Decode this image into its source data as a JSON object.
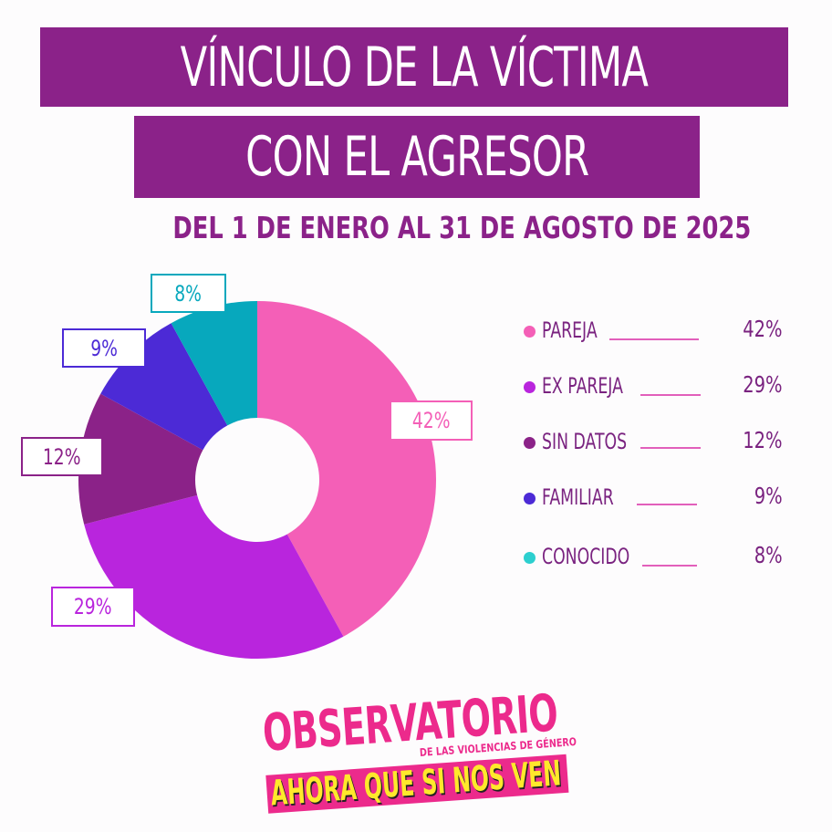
{
  "header": {
    "title_line1": "VÍNCULO DE LA VÍCTIMA",
    "title_line2": "CON EL AGRESOR",
    "subtitle": "DEL 1 DE ENERO AL 31 DE AGOSTO DE 2025"
  },
  "colors": {
    "banner": "#8b2289",
    "pareja": "#f45fb7",
    "ex_pareja": "#b925dd",
    "sin_datos": "#8b2288",
    "familiar": "#4c2ad6",
    "conocido": "#07a8bd"
  },
  "slice_labels": [
    {
      "text": "42%",
      "color": "#f45fb7"
    },
    {
      "text": "29%",
      "color": "#b925dd"
    },
    {
      "text": "12%",
      "color": "#8b2288"
    },
    {
      "text": "9%",
      "color": "#4c2ad6"
    },
    {
      "text": "8%",
      "color": "#07a8bd"
    }
  ],
  "legend": [
    {
      "name": "PAREJA",
      "value": "42%",
      "color": "#f45fb7"
    },
    {
      "name": "EX PAREJA",
      "value": "29%",
      "color": "#b925dd"
    },
    {
      "name": "SIN DATOS",
      "value": "12%",
      "color": "#8b2288"
    },
    {
      "name": "FAMILIAR",
      "value": "9%",
      "color": "#4c2ad6"
    },
    {
      "name": "CONOCIDO",
      "value": "8%",
      "color": "#2ccfcf"
    }
  ],
  "logo": {
    "title": "OBSERVATORIO",
    "subtitle": "DE LAS VIOLENCIAS DE GÉNERO",
    "slogan": "AHORA QUE SI NOS VEN"
  },
  "chart_data": {
    "type": "pie",
    "donut": true,
    "title": "VÍNCULO DE LA VÍCTIMA CON EL AGRESOR",
    "subtitle": "DEL 1 DE ENERO AL 31 DE AGOSTO DE 2025",
    "categories": [
      "PAREJA",
      "EX PAREJA",
      "SIN DATOS",
      "FAMILIAR",
      "CONOCIDO"
    ],
    "values": [
      42,
      29,
      12,
      9,
      8
    ],
    "unit": "%",
    "legend_position": "right"
  }
}
